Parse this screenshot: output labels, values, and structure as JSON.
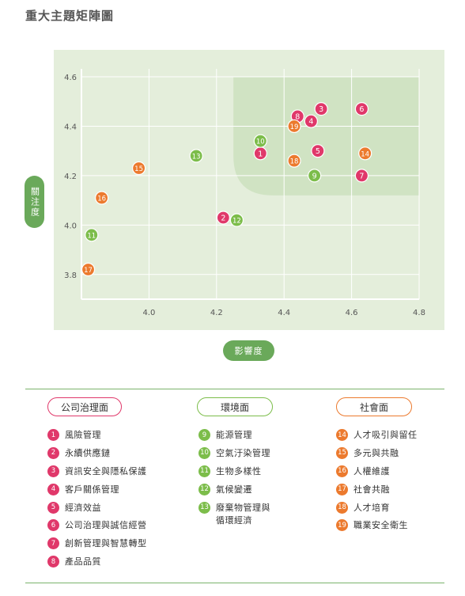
{
  "title": "重大主題矩陣圖",
  "colors": {
    "governance": "#e0386a",
    "environment": "#7cbd4a",
    "social": "#ec7a2e",
    "panel_bg": "#e4eedb",
    "highlight_bg": "#d0e3c3",
    "axis": "#6aa95a"
  },
  "chart_data": {
    "type": "scatter",
    "xlabel": "影響度",
    "ylabel": "關注度",
    "xlim": [
      3.8,
      4.8
    ],
    "ylim": [
      3.7,
      4.6
    ],
    "x_ticks": [
      "4.0",
      "4.2",
      "4.4",
      "4.6",
      "4.8"
    ],
    "y_ticks": [
      "3.8",
      "4.0",
      "4.2",
      "4.4",
      "4.6"
    ],
    "grid": true,
    "highlight_region": {
      "x": [
        4.25,
        4.8
      ],
      "y": [
        4.12,
        4.6
      ]
    },
    "points": [
      {
        "label": "1",
        "x": 4.33,
        "y": 4.29,
        "group": "governance"
      },
      {
        "label": "2",
        "x": 4.22,
        "y": 4.03,
        "group": "governance"
      },
      {
        "label": "3",
        "x": 4.51,
        "y": 4.47,
        "group": "governance"
      },
      {
        "label": "4",
        "x": 4.48,
        "y": 4.42,
        "group": "governance"
      },
      {
        "label": "5",
        "x": 4.5,
        "y": 4.3,
        "group": "governance"
      },
      {
        "label": "6",
        "x": 4.63,
        "y": 4.47,
        "group": "governance"
      },
      {
        "label": "7",
        "x": 4.63,
        "y": 4.2,
        "group": "governance"
      },
      {
        "label": "8",
        "x": 4.44,
        "y": 4.44,
        "group": "governance"
      },
      {
        "label": "9",
        "x": 4.49,
        "y": 4.2,
        "group": "environment"
      },
      {
        "label": "10",
        "x": 4.33,
        "y": 4.34,
        "group": "environment"
      },
      {
        "label": "11",
        "x": 3.83,
        "y": 3.96,
        "group": "environment"
      },
      {
        "label": "12",
        "x": 4.26,
        "y": 4.02,
        "group": "environment"
      },
      {
        "label": "13",
        "x": 4.14,
        "y": 4.28,
        "group": "environment"
      },
      {
        "label": "14",
        "x": 4.64,
        "y": 4.29,
        "group": "social"
      },
      {
        "label": "15",
        "x": 3.97,
        "y": 4.23,
        "group": "social"
      },
      {
        "label": "16",
        "x": 3.86,
        "y": 4.11,
        "group": "social"
      },
      {
        "label": "17",
        "x": 3.82,
        "y": 3.82,
        "group": "social"
      },
      {
        "label": "18",
        "x": 4.43,
        "y": 4.26,
        "group": "social"
      },
      {
        "label": "19",
        "x": 4.43,
        "y": 4.4,
        "group": "social"
      }
    ]
  },
  "legend": {
    "governance": {
      "header": "公司治理面",
      "items": [
        {
          "num": "1",
          "text": "風險管理"
        },
        {
          "num": "2",
          "text": "永續供應鏈"
        },
        {
          "num": "3",
          "text": "資訊安全與隱私保護"
        },
        {
          "num": "4",
          "text": "客戶關係管理"
        },
        {
          "num": "5",
          "text": "經濟效益"
        },
        {
          "num": "6",
          "text": "公司治理與誠信經營"
        },
        {
          "num": "7",
          "text": "創新管理與智慧轉型"
        },
        {
          "num": "8",
          "text": "產品品質"
        }
      ]
    },
    "environment": {
      "header": "環境面",
      "items": [
        {
          "num": "9",
          "text": "能源管理"
        },
        {
          "num": "10",
          "text": "空氣汙染管理"
        },
        {
          "num": "11",
          "text": "生物多樣性"
        },
        {
          "num": "12",
          "text": "氣候變遷"
        },
        {
          "num": "13",
          "text": "廢棄物管理與\n循環經濟"
        }
      ]
    },
    "social": {
      "header": "社會面",
      "items": [
        {
          "num": "14",
          "text": "人才吸引與留任"
        },
        {
          "num": "15",
          "text": "多元與共融"
        },
        {
          "num": "16",
          "text": "人權維護"
        },
        {
          "num": "17",
          "text": "社會共融"
        },
        {
          "num": "18",
          "text": "人才培育"
        },
        {
          "num": "19",
          "text": "職業安全衛生"
        }
      ]
    }
  }
}
